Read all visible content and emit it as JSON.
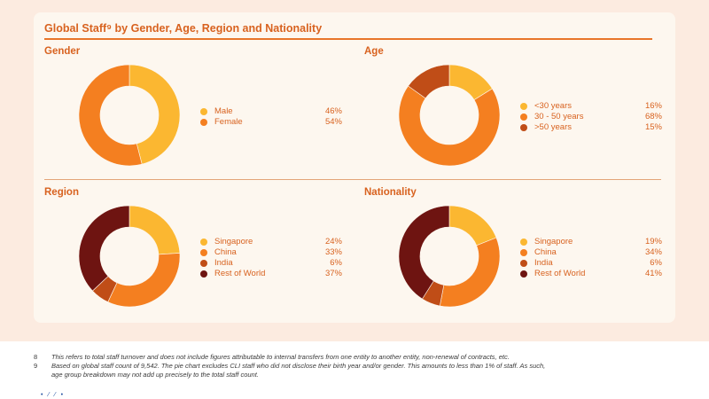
{
  "title": "Global Staff⁹ by Gender, Age, Region and Nationality",
  "chart_data": [
    {
      "type": "pie",
      "title": "Gender",
      "series": [
        {
          "name": "Male",
          "value": 46,
          "value_label": "46%",
          "color": "#fbb731"
        },
        {
          "name": "Female",
          "value": 54,
          "value_label": "54%",
          "color": "#f47f20"
        }
      ]
    },
    {
      "type": "pie",
      "title": "Age",
      "series": [
        {
          "name": "<30 years",
          "value": 16,
          "value_label": "16%",
          "color": "#fbb731"
        },
        {
          "name": "30 - 50 years",
          "value": 68,
          "value_label": "68%",
          "color": "#f47f20"
        },
        {
          "name": ">50 years",
          "value": 15,
          "value_label": "15%",
          "color": "#c04d17"
        }
      ]
    },
    {
      "type": "pie",
      "title": "Region",
      "series": [
        {
          "name": "Singapore",
          "value": 24,
          "value_label": "24%",
          "color": "#fbb731"
        },
        {
          "name": "China",
          "value": 33,
          "value_label": "33%",
          "color": "#f47f20"
        },
        {
          "name": "India",
          "value": 6,
          "value_label": "6%",
          "color": "#c04d17"
        },
        {
          "name": "Rest of World",
          "value": 37,
          "value_label": "37%",
          "color": "#6e1411"
        }
      ]
    },
    {
      "type": "pie",
      "title": "Nationality",
      "series": [
        {
          "name": "Singapore",
          "value": 19,
          "value_label": "19%",
          "color": "#fbb731"
        },
        {
          "name": "China",
          "value": 34,
          "value_label": "34%",
          "color": "#f47f20"
        },
        {
          "name": "India",
          "value": 6,
          "value_label": "6%",
          "color": "#c04d17"
        },
        {
          "name": "Rest of World",
          "value": 41,
          "value_label": "41%",
          "color": "#6e1411"
        }
      ]
    }
  ],
  "footnotes": [
    {
      "num": "8",
      "text": "This refers to total staff turnover and does not include figures attributable to internal transfers from one entity to another entity, non-renewal of contracts, etc."
    },
    {
      "num": "9",
      "text": "Based on global staff count of 9,542. The pie chart excludes CLI staff who did not disclose their birth year and/or gender. This amounts to less than 1% of staff. As such,",
      "cont": "age group breakdown may not add up precisely to the total staff count."
    }
  ],
  "colors": {
    "accent": "#d8621f",
    "card_bg": "#fdf7ef",
    "band_bg": "#fcebe0"
  }
}
